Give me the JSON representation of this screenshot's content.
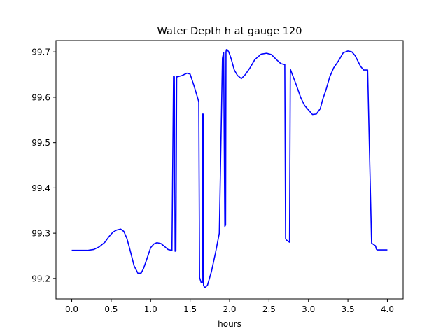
{
  "chart_data": {
    "type": "line",
    "title": "Water Depth h at gauge 120",
    "xlabel": "hours",
    "ylabel": "",
    "xlim": [
      -0.2,
      4.2
    ],
    "ylim": [
      99.155,
      99.725
    ],
    "xticks": [
      0.0,
      0.5,
      1.0,
      1.5,
      2.0,
      2.5,
      3.0,
      3.5,
      4.0
    ],
    "xtick_labels": [
      "0.0",
      "0.5",
      "1.0",
      "1.5",
      "2.0",
      "2.5",
      "3.0",
      "3.5",
      "4.0"
    ],
    "yticks": [
      99.2,
      99.3,
      99.4,
      99.5,
      99.6,
      99.7
    ],
    "ytick_labels": [
      "99.2",
      "99.3",
      "99.4",
      "99.5",
      "99.6",
      "99.7"
    ],
    "grid": false,
    "series": [
      {
        "color": "#0000ff",
        "x": [
          0.0,
          0.1,
          0.2,
          0.28,
          0.35,
          0.42,
          0.47,
          0.52,
          0.57,
          0.62,
          0.66,
          0.7,
          0.74,
          0.79,
          0.84,
          0.88,
          0.91,
          0.95,
          1.0,
          1.04,
          1.08,
          1.13,
          1.18,
          1.22,
          1.27,
          1.29,
          1.295,
          1.3,
          1.31,
          1.32,
          1.33,
          1.335,
          1.34,
          1.4,
          1.46,
          1.5,
          1.55,
          1.61,
          1.62,
          1.64,
          1.655,
          1.66,
          1.665,
          1.67,
          1.675,
          1.68,
          1.685,
          1.69,
          1.72,
          1.77,
          1.82,
          1.87,
          1.91,
          1.92,
          1.925,
          1.94,
          1.95,
          1.955,
          1.96,
          1.965,
          1.97,
          1.99,
          2.02,
          2.06,
          2.1,
          2.15,
          2.2,
          2.26,
          2.32,
          2.4,
          2.47,
          2.53,
          2.6,
          2.65,
          2.7,
          2.71,
          2.72,
          2.76,
          2.77,
          2.8,
          2.85,
          2.9,
          2.95,
          3.0,
          3.05,
          3.1,
          3.15,
          3.18,
          3.22,
          3.27,
          3.32,
          3.38,
          3.44,
          3.5,
          3.55,
          3.59,
          3.62,
          3.66,
          3.7,
          3.75,
          3.8,
          3.85,
          3.86,
          3.87,
          3.9,
          3.95,
          4.0
        ],
        "values": [
          99.262,
          99.262,
          99.262,
          99.264,
          99.27,
          99.28,
          99.292,
          99.302,
          99.307,
          99.309,
          99.304,
          99.288,
          99.262,
          99.228,
          99.211,
          99.212,
          99.222,
          99.242,
          99.268,
          99.276,
          99.279,
          99.277,
          99.27,
          99.264,
          99.262,
          99.646,
          99.646,
          99.645,
          99.26,
          99.262,
          99.645,
          99.645,
          99.645,
          99.648,
          99.653,
          99.651,
          99.625,
          99.59,
          99.202,
          99.191,
          99.19,
          99.563,
          99.563,
          99.185,
          99.183,
          99.182,
          99.18,
          99.18,
          99.185,
          99.215,
          99.255,
          99.3,
          99.686,
          99.695,
          99.699,
          99.315,
          99.318,
          99.7,
          99.705,
          99.705,
          99.705,
          99.7,
          99.685,
          99.66,
          99.648,
          99.641,
          99.65,
          99.665,
          99.683,
          99.695,
          99.697,
          99.694,
          99.682,
          99.674,
          99.672,
          99.288,
          99.285,
          99.28,
          99.662,
          99.648,
          99.625,
          99.6,
          99.582,
          99.572,
          99.562,
          99.563,
          99.575,
          99.595,
          99.615,
          99.645,
          99.665,
          99.68,
          99.698,
          99.702,
          99.7,
          99.692,
          99.682,
          99.668,
          99.66,
          99.66,
          99.278,
          99.272,
          99.265,
          99.263,
          99.263,
          99.263,
          99.263
        ]
      }
    ]
  }
}
